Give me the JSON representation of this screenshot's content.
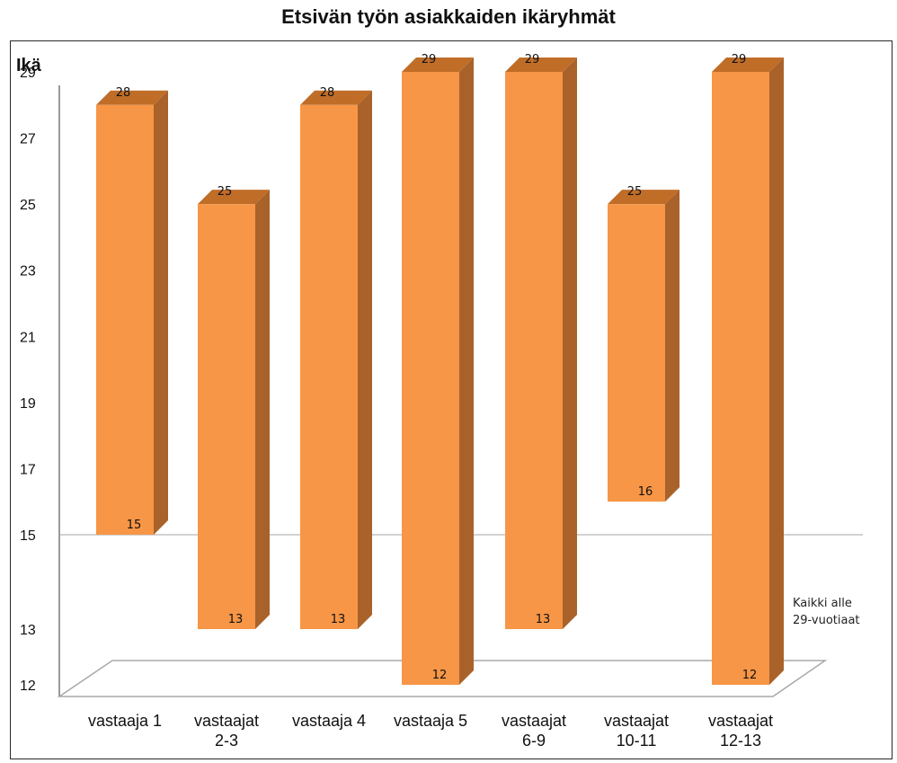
{
  "title": "Etsivän työn asiakkaiden ikäryhmät",
  "note": [
    "Kaikki alle",
    "29-vuotiaat"
  ],
  "chart_data": {
    "type": "bar",
    "subtype": "floating-range-3d",
    "title": "Etsivän työn asiakkaiden ikäryhmät",
    "ylabel": "Ikä",
    "xlabel": "",
    "y_ticks": [
      12,
      13,
      15,
      17,
      19,
      21,
      23,
      25,
      27,
      29
    ],
    "ylim": [
      12,
      29
    ],
    "reference_line": 15,
    "grid": false,
    "color": "#f79646",
    "categories": [
      [
        "vastaaja 1"
      ],
      [
        "vastaajat",
        "2-3"
      ],
      [
        "vastaaja 4"
      ],
      [
        "vastaaja 5"
      ],
      [
        "vastaajat",
        "6-9"
      ],
      [
        "vastaajat",
        "10-11"
      ],
      [
        "vastaajat",
        "12-13"
      ]
    ],
    "min": [
      15,
      13,
      13,
      12,
      13,
      16,
      12
    ],
    "max": [
      28,
      25,
      28,
      29,
      29,
      25,
      29
    ]
  }
}
